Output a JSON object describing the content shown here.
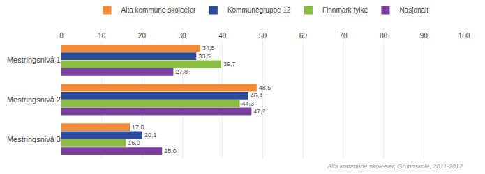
{
  "chart_data": {
    "type": "bar",
    "orientation": "horizontal",
    "categories": [
      "Mestringsnivå 1",
      "Mestringsnivå 2",
      "Mestringsnivå 3"
    ],
    "series": [
      {
        "name": "Alta kommune skoleeier",
        "color": "#F28C38",
        "values": [
          34.5,
          48.5,
          17.0
        ],
        "value_labels": [
          "34,5",
          "48,5",
          "17,0"
        ]
      },
      {
        "name": "Kommunegruppe 12",
        "color": "#2B4C9B",
        "values": [
          33.5,
          46.4,
          20.1
        ],
        "value_labels": [
          "33,5",
          "46,4",
          "20,1"
        ]
      },
      {
        "name": "Finnmark fylke",
        "color": "#8BBD40",
        "values": [
          39.7,
          44.3,
          16.0
        ],
        "value_labels": [
          "39,7",
          "44,3",
          "16,0"
        ]
      },
      {
        "name": "Nasjonalt",
        "color": "#7B3FA0",
        "values": [
          27.8,
          47.2,
          25.0
        ],
        "value_labels": [
          "27,8",
          "47,2",
          "25,0"
        ]
      }
    ],
    "xlim": [
      0,
      100
    ],
    "xticks": [
      0,
      10,
      20,
      30,
      40,
      50,
      60,
      70,
      80,
      90,
      100
    ],
    "grid": true,
    "data_labels": true,
    "legend": "top",
    "annotations": [
      "Alta kommune skoleeier, Grunnskole, 2011-2012"
    ]
  }
}
